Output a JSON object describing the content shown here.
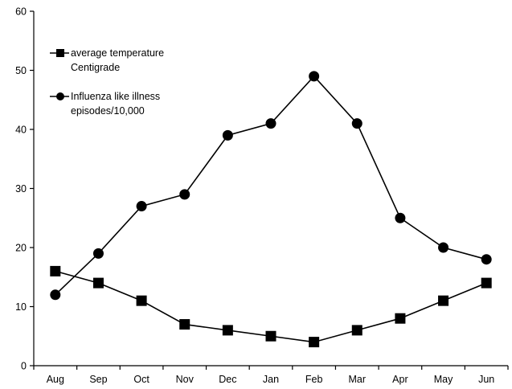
{
  "chart_data": {
    "type": "line",
    "categories": [
      "Aug",
      "Sep",
      "Oct",
      "Nov",
      "Dec",
      "Jan",
      "Feb",
      "Mar",
      "Apr",
      "May",
      "Jun"
    ],
    "ylim": [
      0,
      60
    ],
    "yticks": [
      0,
      10,
      20,
      30,
      40,
      50,
      60
    ],
    "grid": false,
    "legend_position": "top-left",
    "series": [
      {
        "name": "average temperature Centigrade",
        "legend_lines": [
          "average temperature",
          "Centigrade"
        ],
        "marker": "square",
        "color": "#000000",
        "values": [
          16,
          14,
          11,
          7,
          6,
          5,
          4,
          6,
          8,
          11,
          14
        ]
      },
      {
        "name": "Influenza like illness episodes/10,000",
        "legend_lines": [
          "Influenza like illness",
          "episodes/10,000"
        ],
        "marker": "circle",
        "color": "#000000",
        "values": [
          12,
          19,
          27,
          29,
          39,
          41,
          49,
          41,
          25,
          20,
          18
        ]
      }
    ]
  }
}
